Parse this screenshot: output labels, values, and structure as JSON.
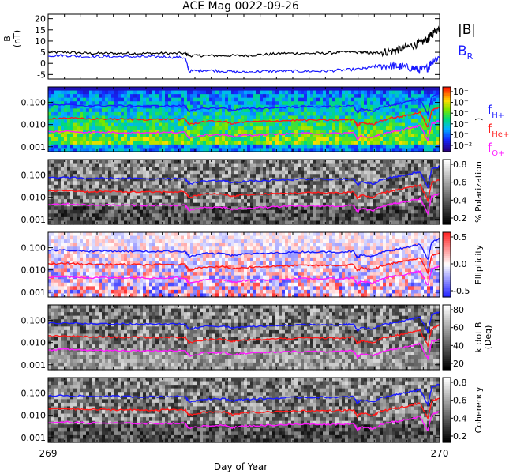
{
  "title": "ACE Mag 0022-09-26",
  "xlabel": "Day of Year",
  "x_ticks": [
    "269",
    "270"
  ],
  "colors": {
    "btotal": "#000000",
    "br": "#1a1aff",
    "h": "#1a1aff",
    "he": "#ff1a1a",
    "o": "#ff1aff"
  },
  "legend": {
    "btotal": "|B|",
    "br": "B",
    "br_sub": "R",
    "fh": "f",
    "fh_sub": "H+",
    "fhe": "f",
    "fhe_sub": "He+",
    "fo": "f",
    "fo_sub": "O+"
  },
  "chart_data": [
    {
      "type": "line",
      "ylabel": "B",
      "ylabel_unit": "(nT)",
      "xlim": [
        269,
        270
      ],
      "ylim": [
        -7,
        22
      ],
      "yticks": [
        "-5",
        "0",
        "5",
        "10",
        "15",
        "20"
      ],
      "series": [
        {
          "name": "|B|",
          "x": [
            269.0,
            269.05,
            269.1,
            269.15,
            269.2,
            269.25,
            269.3,
            269.35,
            269.36,
            269.4,
            269.45,
            269.5,
            269.55,
            269.6,
            269.65,
            269.7,
            269.75,
            269.8,
            269.83,
            269.85,
            269.88,
            269.9,
            269.93,
            269.95,
            269.97,
            269.98,
            270.0
          ],
          "y": [
            5,
            5,
            4.5,
            4.5,
            4.5,
            4.5,
            4.5,
            4.5,
            3.5,
            3.5,
            3.5,
            3.5,
            4,
            4.5,
            4.5,
            4.5,
            5,
            5,
            4.5,
            5,
            5.5,
            6.5,
            8,
            9,
            11,
            13,
            16
          ]
        },
        {
          "name": "B",
          "x": [
            269.0,
            269.05,
            269.1,
            269.15,
            269.2,
            269.25,
            269.3,
            269.35,
            269.36,
            269.4,
            269.45,
            269.5,
            269.55,
            269.6,
            269.65,
            269.7,
            269.75,
            269.8,
            269.83,
            269.85,
            269.88,
            269.9,
            269.93,
            269.95,
            269.97,
            269.98,
            270.0
          ],
          "y": [
            3.5,
            3.5,
            3,
            3,
            3,
            3,
            3,
            2.5,
            -3.5,
            -3,
            -3.5,
            -4,
            -3.5,
            -3.5,
            -3.5,
            -3.5,
            -3,
            -2.5,
            -1.5,
            -1,
            -1,
            -1.5,
            -2,
            -3,
            -2,
            1,
            3
          ]
        }
      ]
    },
    {
      "type": "heatmap",
      "ylabel": "f (Hz)",
      "ylim_log": [
        0.0006,
        0.5
      ],
      "yticks": [
        "0.001",
        "0.010",
        "0.100"
      ],
      "colorbar_ticks": [
        "10⁻²",
        "10⁻",
        "10⁻",
        "10⁻",
        "10⁻",
        "10⁻"
      ],
      "colorbar_label": ")",
      "colormap": "rainbow"
    },
    {
      "type": "heatmap",
      "ylabel": "f (Hz)",
      "ylim_log": [
        0.0006,
        0.5
      ],
      "yticks": [
        "0.001",
        "0.010",
        "0.100"
      ],
      "colorbar_ticks": [
        "0.2",
        "0.4",
        "0.6",
        "0.8"
      ],
      "colorbar_label": "% Polarization",
      "colormap": "gray"
    },
    {
      "type": "heatmap",
      "ylabel": "f (Hz)",
      "ylim_log": [
        0.0006,
        0.5
      ],
      "yticks": [
        "0.001",
        "0.010",
        "0.100"
      ],
      "colorbar_ticks": [
        "-0.5",
        "0.0",
        "0.5"
      ],
      "colorbar_label": "Ellipticity",
      "colormap": "bluewhitered"
    },
    {
      "type": "heatmap",
      "ylabel": "f (Hz)",
      "ylim_log": [
        0.0006,
        0.5
      ],
      "yticks": [
        "0.001",
        "0.010",
        "0.100"
      ],
      "colorbar_ticks": [
        "20",
        "40",
        "60",
        "80"
      ],
      "colorbar_label": "k dot B",
      "colorbar_label2": "(Deg)",
      "colormap": "gray"
    },
    {
      "type": "heatmap",
      "ylabel": "f (Hz)",
      "ylim_log": [
        0.0006,
        0.5
      ],
      "yticks": [
        "0.001",
        "0.010",
        "0.100"
      ],
      "colorbar_ticks": [
        "0.2",
        "0.4",
        "0.6",
        "0.8"
      ],
      "colorbar_label": "Coherency",
      "colormap": "gray"
    }
  ],
  "gyro_lines": {
    "x": [
      269.0,
      269.05,
      269.1,
      269.15,
      269.2,
      269.25,
      269.3,
      269.35,
      269.36,
      269.4,
      269.45,
      269.47,
      269.5,
      269.55,
      269.6,
      269.65,
      269.7,
      269.75,
      269.78,
      269.79,
      269.8,
      269.83,
      269.85,
      269.88,
      269.9,
      269.93,
      269.95,
      269.97,
      269.98,
      270.0
    ],
    "fH": [
      0.075,
      0.078,
      0.07,
      0.072,
      0.07,
      0.068,
      0.07,
      0.07,
      0.04,
      0.055,
      0.055,
      0.045,
      0.052,
      0.055,
      0.06,
      0.065,
      0.065,
      0.065,
      0.07,
      0.035,
      0.05,
      0.04,
      0.06,
      0.08,
      0.09,
      0.12,
      0.14,
      0.03,
      0.18,
      0.25
    ],
    "fHe": [
      0.019,
      0.02,
      0.018,
      0.018,
      0.0175,
      0.017,
      0.0175,
      0.0175,
      0.01,
      0.014,
      0.014,
      0.011,
      0.013,
      0.014,
      0.015,
      0.016,
      0.016,
      0.016,
      0.0175,
      0.009,
      0.0125,
      0.01,
      0.015,
      0.02,
      0.0225,
      0.03,
      0.035,
      0.0075,
      0.045,
      0.06
    ],
    "fO": [
      0.0047,
      0.005,
      0.0045,
      0.0045,
      0.0044,
      0.0043,
      0.0044,
      0.0044,
      0.0025,
      0.0035,
      0.0035,
      0.0028,
      0.0033,
      0.0035,
      0.0038,
      0.004,
      0.004,
      0.004,
      0.0044,
      0.0022,
      0.0031,
      0.0025,
      0.0038,
      0.005,
      0.0056,
      0.0075,
      0.0088,
      0.0019,
      0.011,
      0.015
    ]
  }
}
